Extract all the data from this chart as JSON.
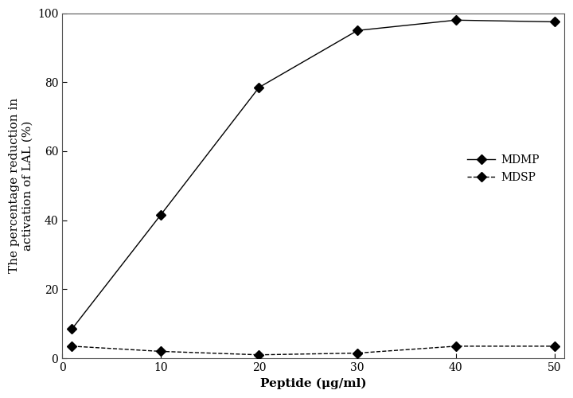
{
  "MDMP_x": [
    1,
    10,
    20,
    30,
    40,
    50
  ],
  "MDMP_y": [
    8.5,
    41.5,
    78.5,
    95.0,
    98.0,
    97.5
  ],
  "MDSP_x": [
    1,
    10,
    20,
    30,
    40,
    50
  ],
  "MDSP_y": [
    3.5,
    2.0,
    1.0,
    1.5,
    3.5,
    3.5
  ],
  "xlabel": "Peptide (μg/ml)",
  "ylabel": "The percentage reduction in\nactivation of LAL (%)",
  "xlim": [
    0,
    51
  ],
  "ylim": [
    0,
    100
  ],
  "xticks": [
    0,
    10,
    20,
    30,
    40,
    50
  ],
  "yticks": [
    0,
    20,
    40,
    60,
    80,
    100
  ],
  "MDMP_label": "MDMP",
  "MDSP_label": "MDSP",
  "line_color": "#000000",
  "marker": "D",
  "markersize": 6,
  "linewidth": 1.0,
  "label_fontsize": 11,
  "tick_fontsize": 10,
  "legend_fontsize": 10,
  "background_color": "#ffffff"
}
